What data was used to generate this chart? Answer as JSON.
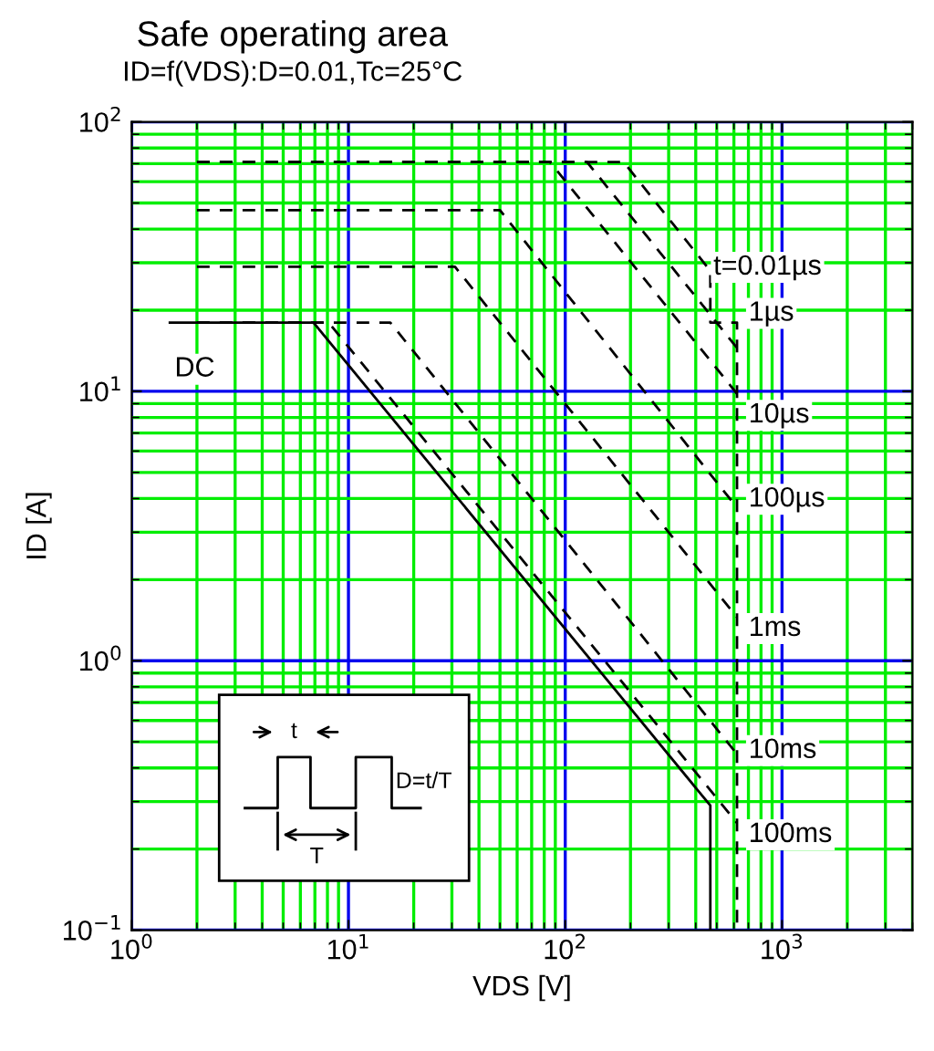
{
  "chart_data": {
    "type": "line",
    "title": "Safe operating area",
    "subtitle": "ID=f(VDS):D=0.01,Tc=25°C",
    "xlabel": "VDS [V]",
    "ylabel": "ID [A]",
    "log": "xy",
    "grid": true,
    "marker": "none",
    "xlim": [
      1,
      4000
    ],
    "ylim": [
      0.1,
      100
    ],
    "xticks": [
      {
        "value": 1,
        "label": "10$^{0}$"
      },
      {
        "value": 2,
        "label": null
      },
      {
        "value": 3,
        "label": null
      },
      {
        "value": 4,
        "label": null
      },
      {
        "value": 5,
        "label": null
      },
      {
        "value": 6,
        "label": null
      },
      {
        "value": 7,
        "label": null
      },
      {
        "value": 8,
        "label": null
      },
      {
        "value": 9,
        "label": null
      },
      {
        "value": 10,
        "label": "10$^{1}$"
      },
      {
        "value": 20,
        "label": null
      },
      {
        "value": 30,
        "label": null
      },
      {
        "value": 40,
        "label": null
      },
      {
        "value": 50,
        "label": null
      },
      {
        "value": 60,
        "label": null
      },
      {
        "value": 70,
        "label": null
      },
      {
        "value": 80,
        "label": null
      },
      {
        "value": 90,
        "label": null
      },
      {
        "value": 100,
        "label": "10$^{2}$"
      },
      {
        "value": 200,
        "label": null
      },
      {
        "value": 300,
        "label": null
      },
      {
        "value": 400,
        "label": null
      },
      {
        "value": 500,
        "label": null
      },
      {
        "value": 600,
        "label": null
      },
      {
        "value": 700,
        "label": null
      },
      {
        "value": 800,
        "label": null
      },
      {
        "value": 900,
        "label": null
      },
      {
        "value": 1000,
        "label": "10$^{3}$"
      },
      {
        "value": 2000,
        "label": null
      },
      {
        "value": 3000,
        "label": null
      },
      {
        "value": 4000,
        "label": null
      }
    ],
    "yticks": [
      {
        "value": 0.1,
        "label": "10$^{−1}$"
      },
      {
        "value": 0.2,
        "label": null
      },
      {
        "value": 0.3,
        "label": null
      },
      {
        "value": 0.4,
        "label": null
      },
      {
        "value": 0.5,
        "label": null
      },
      {
        "value": 0.6,
        "label": null
      },
      {
        "value": 0.7,
        "label": null
      },
      {
        "value": 0.8,
        "label": null
      },
      {
        "value": 0.9,
        "label": null
      },
      {
        "value": 1,
        "label": "10$^{0}$"
      },
      {
        "value": 2,
        "label": null
      },
      {
        "value": 3,
        "label": null
      },
      {
        "value": 4,
        "label": null
      },
      {
        "value": 5,
        "label": null
      },
      {
        "value": 6,
        "label": null
      },
      {
        "value": 7,
        "label": null
      },
      {
        "value": 8,
        "label": null
      },
      {
        "value": 9,
        "label": null
      },
      {
        "value": 10,
        "label": "10$^{1}$"
      },
      {
        "value": 20,
        "label": null
      },
      {
        "value": 30,
        "label": null
      },
      {
        "value": 40,
        "label": null
      },
      {
        "value": 50,
        "label": null
      },
      {
        "value": 60,
        "label": null
      },
      {
        "value": 70,
        "label": null
      },
      {
        "value": 80,
        "label": null
      },
      {
        "value": 90,
        "label": null
      },
      {
        "value": 100,
        "label": "10$^{2}$"
      }
    ],
    "series": [
      {
        "color": "#000000",
        "line_style": "solid",
        "x": [
          1.5,
          6.9,
          467,
          467
        ],
        "values": [
          18,
          18,
          0.29,
          0.1
        ]
      },
      {
        "color": "#000000",
        "line_style": "dashed",
        "x": [
          2,
          8.1,
          620
        ],
        "values": [
          18,
          18,
          0.25
        ]
      },
      {
        "color": "#000000",
        "line_style": "dashed",
        "x": [
          2,
          15.6,
          620
        ],
        "values": [
          18,
          18,
          0.45
        ]
      },
      {
        "color": "#000000",
        "line_style": "dashed",
        "x": [
          2,
          31,
          620
        ],
        "values": [
          29,
          29,
          1.45
        ]
      },
      {
        "color": "#000000",
        "line_style": "dashed",
        "x": [
          2,
          50,
          620
        ],
        "values": [
          47,
          47,
          3.7
        ]
      },
      {
        "color": "#000000",
        "line_style": "dashed",
        "x": [
          2,
          85,
          620
        ],
        "values": [
          71,
          71,
          9.8
        ]
      },
      {
        "color": "#000000",
        "line_style": "dashed",
        "x": [
          2,
          126,
          620
        ],
        "values": [
          71,
          71,
          14.5
        ]
      },
      {
        "color": "#000000",
        "line_style": "dashed",
        "x": [
          2,
          186,
          467,
          467,
          620,
          620
        ],
        "values": [
          71,
          71,
          28,
          18,
          18,
          0.1
        ]
      }
    ],
    "annotations": [
      "DC",
      "100ms",
      "10ms",
      "1ms",
      "100µs",
      "10µs",
      "1µs",
      "t=0.01µs",
      "t",
      "T",
      "D=t/T"
    ]
  }
}
